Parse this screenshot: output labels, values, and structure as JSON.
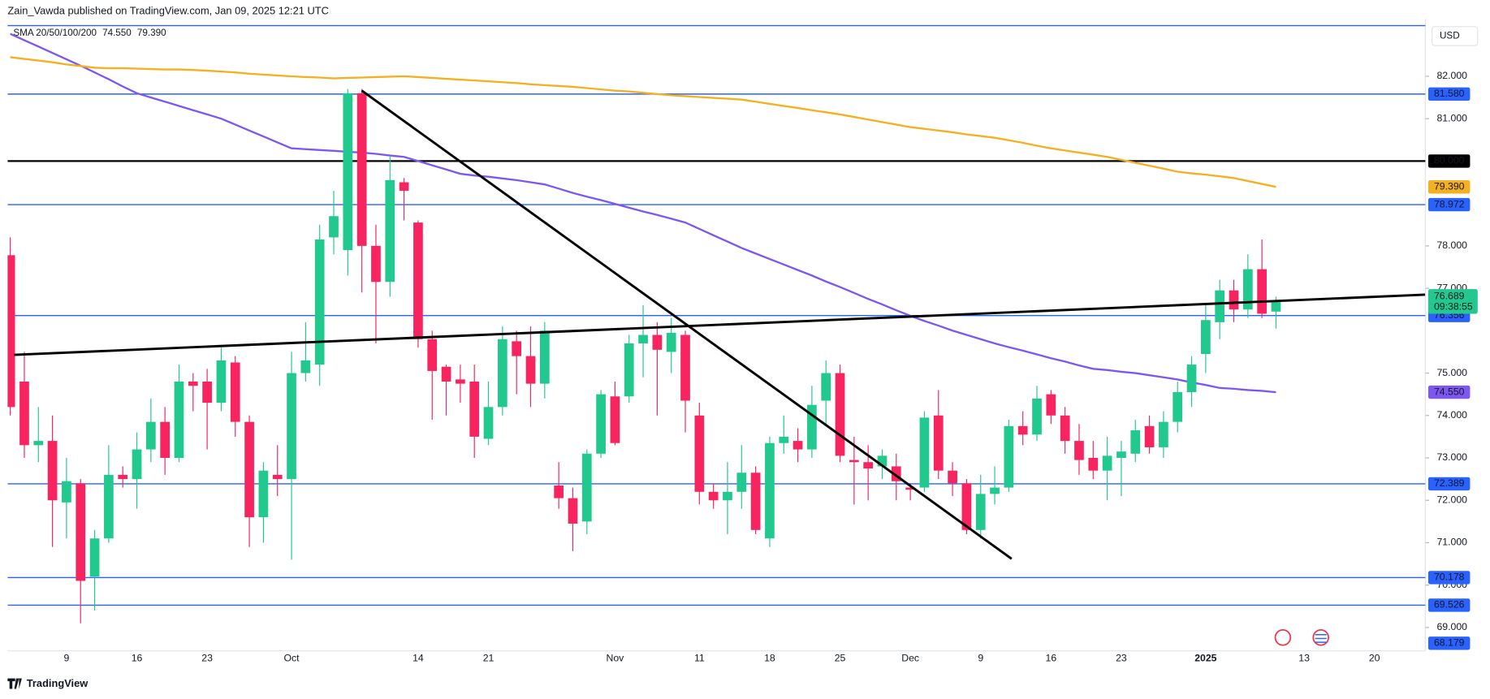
{
  "header": {
    "publisher": "Zain_Vawda published on TradingView.com, Jan 09, 2025 12:21 UTC",
    "brand": "TradingView"
  },
  "chart_data": {
    "type": "candlestick",
    "currency": "USD",
    "indicator": "SMA 20/50/100/200",
    "categories": [
      null,
      null,
      null,
      null,
      "9",
      null,
      null,
      null,
      null,
      "16",
      null,
      null,
      null,
      null,
      "23",
      null,
      null,
      null,
      null,
      null,
      "Oct",
      null,
      null,
      null,
      null,
      null,
      null,
      null,
      null,
      "14",
      null,
      null,
      null,
      null,
      "21",
      null,
      null,
      null,
      null,
      null,
      null,
      null,
      null,
      "Nov",
      null,
      null,
      null,
      null,
      null,
      "11",
      null,
      null,
      null,
      null,
      "18",
      null,
      null,
      null,
      null,
      "25",
      null,
      null,
      null,
      null,
      "Dec",
      null,
      null,
      null,
      null,
      "9",
      null,
      null,
      null,
      null,
      "16",
      null,
      null,
      null,
      null,
      "23",
      null,
      null,
      null,
      null,
      null,
      "2025",
      null,
      null,
      null,
      null,
      null,
      null,
      "13",
      null,
      null,
      null,
      null,
      "20"
    ],
    "open": [
      77.78,
      74.8,
      73.3,
      73.4,
      71.95,
      72.4,
      70.2,
      71.1,
      72.6,
      72.5,
      73.2,
      73.85,
      73.0,
      74.8,
      74.8,
      74.3,
      75.25,
      73.85,
      71.6,
      72.6,
      72.5,
      75.0,
      75.2,
      78.2,
      77.9,
      81.6,
      78.0,
      77.15,
      79.5,
      78.55,
      75.8,
      75.15,
      74.85,
      74.8,
      73.45,
      74.2,
      75.75,
      75.4,
      74.75,
      72.35,
      72.05,
      71.5,
      73.1,
      74.45,
      74.45,
      75.7,
      75.9,
      75.5,
      75.9,
      74.0,
      72.2,
      72.0,
      72.2,
      72.65,
      71.1,
      73.35,
      73.4,
      73.2,
      74.35,
      75.0,
      72.95,
      72.9,
      72.8,
      72.8,
      72.3,
      72.3,
      74.0,
      72.7,
      72.4,
      71.3,
      72.15,
      72.3,
      73.75,
      73.55,
      74.5,
      74.0,
      73.4,
      73.0,
      72.7,
      73.0,
      73.1,
      73.75,
      73.25,
      73.85,
      74.55,
      75.45,
      76.2,
      76.95,
      76.5,
      77.45,
      76.45,
      null,
      null,
      null,
      null,
      null,
      null,
      null
    ],
    "high": [
      78.2,
      75.5,
      74.2,
      74.0,
      73.0,
      72.5,
      71.3,
      73.3,
      72.8,
      73.6,
      74.4,
      74.2,
      75.2,
      75.0,
      75.1,
      75.6,
      75.4,
      74.0,
      72.9,
      73.3,
      75.5,
      76.2,
      78.5,
      79.3,
      81.7,
      81.7,
      78.5,
      80.1,
      79.6,
      78.6,
      76.0,
      75.2,
      75.2,
      75.2,
      74.8,
      76.1,
      76.0,
      76.1,
      76.2,
      72.9,
      72.3,
      73.2,
      74.6,
      74.8,
      75.9,
      76.6,
      76.2,
      76.3,
      76.0,
      74.3,
      72.4,
      72.9,
      73.3,
      72.8,
      73.5,
      74.0,
      73.7,
      74.7,
      75.3,
      75.2,
      73.5,
      73.3,
      73.2,
      73.1,
      72.4,
      74.1,
      74.6,
      72.9,
      72.5,
      72.6,
      72.8,
      73.9,
      74.1,
      74.7,
      74.6,
      74.2,
      73.8,
      73.4,
      73.5,
      73.4,
      73.9,
      74.0,
      74.1,
      74.8,
      75.4,
      76.6,
      77.2,
      77.2,
      77.8,
      78.15,
      76.8,
      null,
      null,
      null,
      null,
      null,
      null,
      null
    ],
    "low": [
      74.0,
      73.0,
      72.9,
      70.9,
      71.1,
      69.1,
      69.4,
      71.0,
      72.3,
      71.8,
      72.9,
      72.6,
      72.9,
      74.1,
      73.2,
      74.1,
      73.5,
      70.9,
      71.0,
      72.1,
      70.6,
      74.8,
      74.7,
      77.8,
      77.3,
      76.9,
      75.7,
      76.8,
      78.6,
      75.6,
      73.9,
      74.0,
      74.3,
      73.0,
      73.3,
      74.0,
      74.5,
      74.2,
      74.4,
      71.8,
      70.8,
      71.2,
      73.0,
      73.3,
      74.3,
      74.9,
      74.0,
      75.0,
      73.6,
      71.9,
      71.8,
      71.2,
      71.8,
      71.2,
      70.9,
      73.1,
      72.9,
      73.0,
      73.8,
      72.9,
      71.9,
      72.0,
      72.5,
      72.0,
      72.0,
      72.2,
      72.5,
      72.1,
      71.2,
      71.1,
      71.9,
      72.2,
      73.3,
      73.4,
      73.8,
      73.1,
      72.6,
      72.5,
      72.0,
      72.1,
      72.9,
      73.1,
      73.0,
      73.6,
      74.2,
      75.0,
      75.8,
      76.2,
      76.3,
      76.3,
      76.05,
      null,
      null,
      null,
      null,
      null,
      null,
      null
    ],
    "close": [
      74.2,
      73.3,
      73.4,
      72.0,
      72.45,
      70.1,
      71.1,
      72.6,
      72.5,
      73.2,
      73.85,
      73.0,
      74.8,
      74.7,
      74.3,
      75.3,
      73.85,
      71.6,
      72.7,
      72.5,
      75.0,
      75.3,
      78.15,
      78.7,
      81.6,
      78.0,
      77.15,
      79.55,
      79.3,
      75.8,
      75.05,
      74.8,
      74.75,
      73.5,
      74.2,
      75.8,
      75.4,
      74.75,
      76.0,
      72.05,
      71.45,
      73.1,
      74.5,
      73.35,
      75.7,
      75.9,
      75.55,
      75.95,
      74.35,
      72.2,
      72.0,
      72.2,
      72.65,
      71.3,
      73.35,
      73.5,
      73.2,
      74.25,
      75.0,
      73.05,
      72.9,
      72.75,
      73.05,
      72.45,
      72.25,
      73.95,
      72.7,
      72.4,
      71.3,
      72.15,
      72.3,
      73.75,
      73.55,
      74.4,
      74.0,
      73.4,
      72.95,
      72.7,
      73.05,
      73.15,
      73.65,
      73.25,
      73.85,
      74.55,
      75.2,
      76.25,
      76.95,
      76.5,
      77.45,
      76.4,
      76.689,
      null,
      null,
      null,
      null,
      null,
      null,
      null
    ],
    "up_color": "#22c98e",
    "down_color": "#f7245f",
    "countdown": "09:38:55",
    "series": [
      {
        "color": "#7e57f2",
        "label": "74.550",
        "values": [
          83.0,
          82.85,
          82.7,
          82.55,
          82.4,
          82.25,
          82.09,
          81.93,
          81.76,
          81.6,
          81.5,
          81.4,
          81.3,
          81.2,
          81.1,
          81.0,
          80.86,
          80.72,
          80.58,
          80.44,
          80.3,
          80.28,
          80.26,
          80.24,
          80.22,
          80.2,
          80.17,
          80.13,
          80.1,
          80.0,
          79.9,
          79.8,
          79.7,
          79.66,
          79.63,
          79.59,
          79.55,
          79.5,
          79.45,
          79.35,
          79.25,
          79.16,
          79.08,
          78.99,
          78.9,
          78.81,
          78.73,
          78.64,
          78.55,
          78.4,
          78.25,
          78.1,
          77.95,
          77.82,
          77.69,
          77.56,
          77.43,
          77.3,
          77.16,
          77.03,
          76.89,
          76.75,
          76.62,
          76.48,
          76.35,
          76.23,
          76.12,
          76.0,
          75.9,
          75.8,
          75.7,
          75.61,
          75.53,
          75.44,
          75.35,
          75.27,
          75.18,
          75.1,
          75.07,
          75.03,
          75.0,
          74.95,
          74.9,
          74.85,
          74.78,
          74.72,
          74.65,
          74.63,
          74.6,
          74.58,
          74.55,
          null,
          null,
          null,
          null,
          null,
          null,
          null
        ]
      },
      {
        "color": "#f5b022",
        "label": "79.390",
        "values": [
          82.45,
          82.41,
          82.37,
          82.33,
          82.28,
          82.24,
          82.2,
          82.19,
          82.19,
          82.18,
          82.17,
          82.16,
          82.16,
          82.15,
          82.13,
          82.11,
          82.09,
          82.06,
          82.04,
          82.02,
          82.0,
          81.98,
          81.97,
          81.95,
          81.96,
          81.97,
          81.98,
          81.99,
          82.0,
          81.98,
          81.96,
          81.94,
          81.92,
          81.9,
          81.88,
          81.86,
          81.84,
          81.81,
          81.79,
          81.77,
          81.75,
          81.72,
          81.69,
          81.66,
          81.64,
          81.61,
          81.58,
          81.55,
          81.53,
          81.51,
          81.49,
          81.47,
          81.45,
          81.4,
          81.35,
          81.3,
          81.25,
          81.2,
          81.15,
          81.1,
          81.04,
          80.98,
          80.92,
          80.86,
          80.8,
          80.76,
          80.72,
          80.68,
          80.63,
          80.59,
          80.55,
          80.49,
          80.43,
          80.36,
          80.3,
          80.25,
          80.2,
          80.15,
          80.1,
          80.03,
          79.96,
          79.89,
          79.82,
          79.75,
          79.71,
          79.68,
          79.64,
          79.6,
          79.53,
          79.46,
          79.39,
          null,
          null,
          null,
          null,
          null,
          null,
          null
        ]
      }
    ],
    "levels": [
      {
        "value": 81.58,
        "label": "81.580",
        "color": "#2962ff"
      },
      {
        "value": 80,
        "label": "80.000",
        "color": "#000000"
      },
      {
        "value": 78.972,
        "label": "78.972",
        "color": "#2962ff"
      },
      {
        "value": 76.356,
        "label": "76.356",
        "color": "#2962ff"
      },
      {
        "value": 72.389,
        "label": "72.389",
        "color": "#2962ff"
      },
      {
        "value": 70.178,
        "label": "70.178",
        "color": "#2962ff"
      },
      {
        "value": 69.526,
        "label": "69.526",
        "color": "#2962ff"
      },
      {
        "value": 68.179,
        "label": "68.179",
        "color": "#2962ff"
      }
    ],
    "trendlines": [
      {
        "x": [
          25,
          71.2
        ],
        "values": [
          81.66,
          70.62
        ]
      },
      {
        "x": [
          0.28,
          100.6
        ],
        "values": [
          75.43,
          76.85
        ]
      }
    ],
    "ylim": [
      68.45,
      83.35
    ],
    "yticks": [
      {
        "value": 82,
        "label": "82.000"
      },
      {
        "value": 81,
        "label": "81.000"
      },
      {
        "value": 78,
        "label": "78.000"
      },
      {
        "value": 77,
        "label": "77.000"
      },
      {
        "value": 75,
        "label": "75.000"
      },
      {
        "value": 74,
        "label": "74.000"
      },
      {
        "value": 73,
        "label": "73.000"
      },
      {
        "value": 72,
        "label": "72.000"
      },
      {
        "value": 71,
        "label": "71.000"
      },
      {
        "value": 70,
        "label": "70.000"
      },
      {
        "value": 69,
        "label": "69.000"
      }
    ],
    "grid": false
  }
}
